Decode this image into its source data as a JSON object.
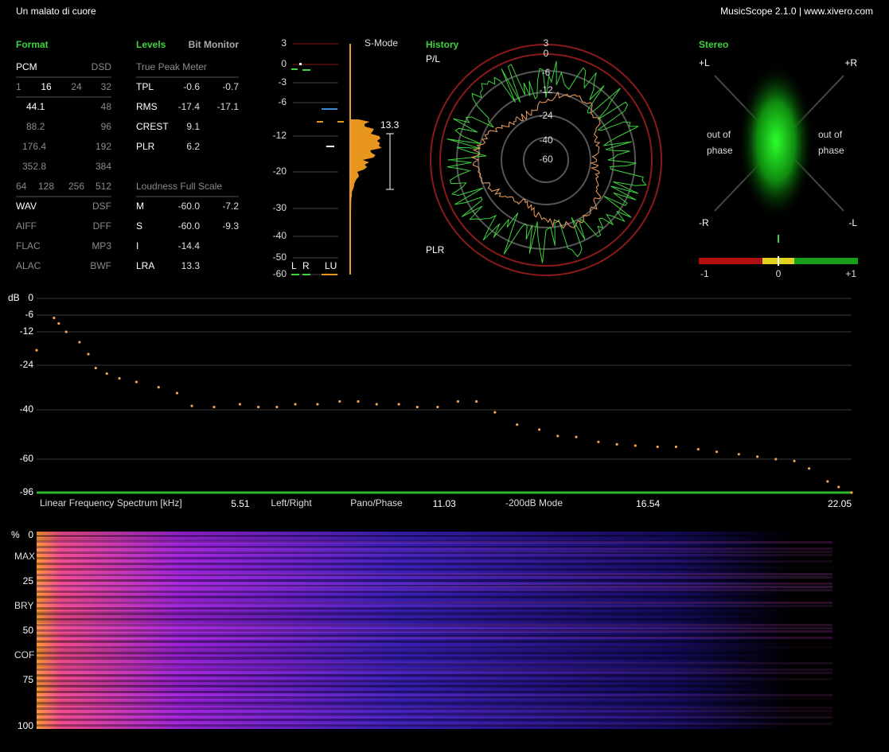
{
  "header": {
    "title": "Un malato di cuore",
    "app": "MusicScope 2.1.0 | www.xivero.com"
  },
  "format": {
    "title": "Format",
    "rows": [
      [
        "PCM",
        "DSD"
      ],
      [
        "1",
        "16",
        "24",
        "32"
      ],
      [
        "44.1",
        "48"
      ],
      [
        "88.2",
        "96"
      ],
      [
        "176.4",
        "192"
      ],
      [
        "352.8",
        "384"
      ],
      [
        "64",
        "128",
        "256",
        "512"
      ],
      [
        "WAV",
        "DSF"
      ],
      [
        "AIFF",
        "DFF"
      ],
      [
        "FLAC",
        "MP3"
      ],
      [
        "ALAC",
        "BWF"
      ]
    ]
  },
  "levels": {
    "title": "Levels",
    "bit_monitor": "Bit Monitor",
    "true_peak_title": "True Peak Meter",
    "true_peak": [
      [
        "TPL",
        "-0.6",
        "-0.7"
      ],
      [
        "RMS",
        "-17.4",
        "-17.1"
      ],
      [
        "CREST",
        "9.1"
      ],
      [
        "PLR",
        "6.2"
      ]
    ],
    "loudness_title": "Loudness Full Scale",
    "loudness": [
      [
        "M",
        "-60.0",
        "-7.2"
      ],
      [
        "S",
        "-60.0",
        "-9.3"
      ],
      [
        "I",
        "-14.4"
      ],
      [
        "LRA",
        "13.3"
      ]
    ]
  },
  "meter": {
    "mode": "S-Mode",
    "scale": [
      "3",
      "0",
      "-3",
      "-6",
      "-12",
      "-20",
      "-30",
      "-40",
      "-50",
      "-60"
    ],
    "range_label": "13.3",
    "channels": [
      "L",
      "R",
      "LU"
    ]
  },
  "history": {
    "title": "History",
    "top_label": "P/L",
    "bottom_label": "PLR",
    "rings": [
      "3",
      "0",
      "-6",
      "-12",
      "-24",
      "-40",
      "-60"
    ]
  },
  "stereo": {
    "title": "Stereo",
    "corners": [
      "+L",
      "+R",
      "-R",
      "-L"
    ],
    "phase_left": [
      "out of",
      "phase"
    ],
    "phase_right": [
      "out of",
      "phase"
    ],
    "scale": [
      "-1",
      "0",
      "+1"
    ]
  },
  "spectrum": {
    "unit": "dB",
    "yticks": [
      0,
      -6,
      -12,
      -24,
      -40,
      -60,
      -96
    ],
    "xlabel": "Linear Frequency Spectrum [kHz]",
    "xlim": [
      0,
      22.05
    ],
    "xticks": [
      5.51,
      11.03,
      16.54,
      22.05
    ],
    "modes": [
      "Left/Right",
      "Pano/Phase",
      "-200dB Mode"
    ],
    "x": [
      0.0,
      0.47,
      0.6,
      0.8,
      1.16,
      1.4,
      1.6,
      1.9,
      2.24,
      2.7,
      3.3,
      3.8,
      4.2,
      4.8,
      5.5,
      6.0,
      6.5,
      7.0,
      7.6,
      8.2,
      8.7,
      9.2,
      9.8,
      10.3,
      10.85,
      11.4,
      11.9,
      12.4,
      13.0,
      13.6,
      14.1,
      14.6,
      15.2,
      15.7,
      16.2,
      16.8,
      17.3,
      17.9,
      18.4,
      19.0,
      19.5,
      20.0,
      20.5,
      20.9,
      21.4,
      21.7,
      22.05
    ],
    "values": [
      -18.6,
      -7,
      -9,
      -12,
      -15.7,
      -20,
      -25,
      -27,
      -28.7,
      -30,
      -31.9,
      -34,
      -38.6,
      -39,
      -38,
      -39,
      -39,
      -38,
      -38,
      -37,
      -37,
      -38,
      -38,
      -39,
      -39,
      -37,
      -37,
      -41,
      -46,
      -48,
      -50.6,
      -51,
      -53,
      -54,
      -54.5,
      -55,
      -55,
      -56,
      -57,
      -58,
      -59,
      -60,
      -62,
      -70,
      -84,
      -90,
      -96
    ]
  },
  "spectrogram": {
    "unit": "%",
    "ticks": [
      "0",
      "25",
      "50",
      "75",
      "100"
    ],
    "markers": [
      "MAX",
      "BRY",
      "COF"
    ]
  }
}
